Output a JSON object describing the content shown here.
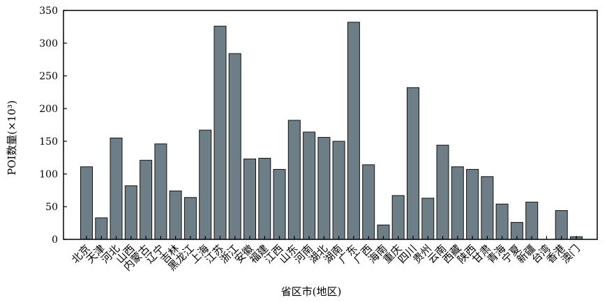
{
  "chart_data": {
    "type": "bar",
    "title": "",
    "xlabel": "省区市(地区)",
    "ylabel": "POI数量(×10³)",
    "ylim": [
      0,
      350
    ],
    "yticks": [
      0,
      50,
      100,
      150,
      200,
      250,
      300,
      350
    ],
    "grid": false,
    "bar_color": "#6e7e86",
    "categories": [
      "北京",
      "天津",
      "河北",
      "山西",
      "内蒙古",
      "辽宁",
      "吉林",
      "黑龙江",
      "上海",
      "江苏",
      "浙江",
      "安徽",
      "福建",
      "江西",
      "山东",
      "河南",
      "湖北",
      "湖南",
      "广东",
      "广西",
      "海南",
      "重庆",
      "四川",
      "贵州",
      "云南",
      "西藏",
      "陕西",
      "甘肃",
      "青海",
      "宁夏",
      "新疆",
      "台湾",
      "香港",
      "澳门"
    ],
    "values": [
      111,
      33,
      155,
      82,
      121,
      146,
      74,
      64,
      167,
      326,
      284,
      123,
      124,
      107,
      182,
      164,
      156,
      150,
      332,
      114,
      22,
      67,
      232,
      63,
      144,
      111,
      107,
      96,
      54,
      26,
      57,
      0,
      44,
      4
    ]
  }
}
